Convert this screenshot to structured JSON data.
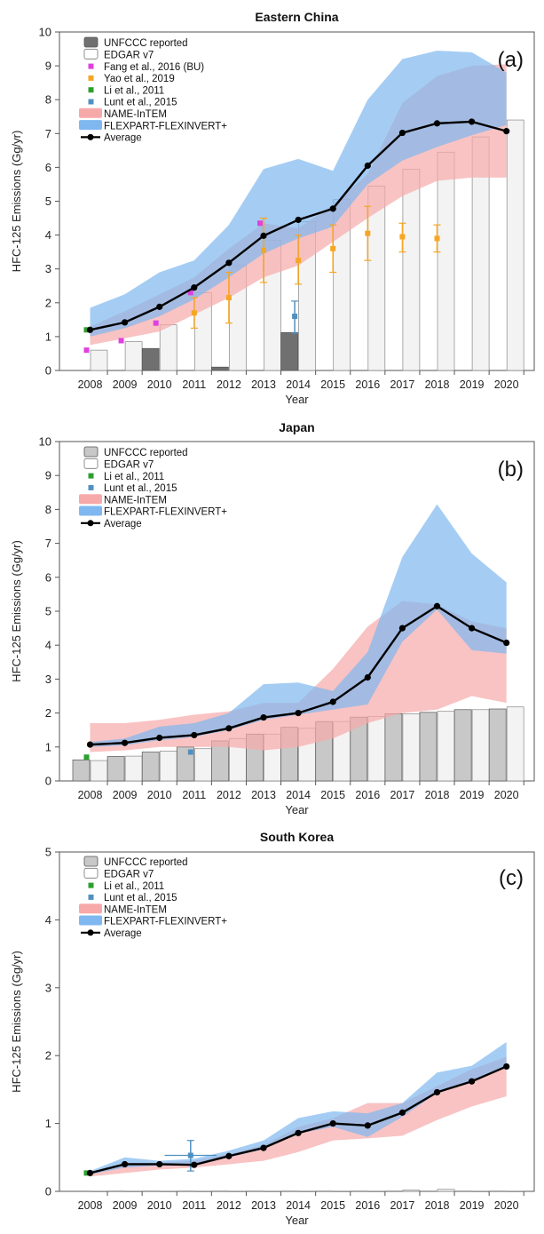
{
  "ylabel": "HFC-125 Emissions (Gg/yr)",
  "chart_data": [
    {
      "type": "bar",
      "title": "Eastern China",
      "panel_label": "(a)",
      "xlabel": "Year",
      "ylabel": "HFC-125 Emissions (Gg/yr)",
      "ylim": [
        0,
        10
      ],
      "yticks": [
        "0",
        "1",
        "2",
        "3",
        "4",
        "5",
        "6",
        "7",
        "8",
        "9",
        "10"
      ],
      "categories": [
        "2008",
        "2009",
        "2010",
        "2011",
        "2012",
        "2013",
        "2014",
        "2015",
        "2016",
        "2017",
        "2018",
        "2019",
        "2020"
      ],
      "legend_placement": "top-left",
      "legend": [
        "UNFCCC reported",
        "EDGAR v7",
        "Fang et al., 2016 (BU)",
        "Yao et al., 2019",
        "Li et al., 2011",
        "Lunt et al., 2015",
        "NAME-InTEM",
        "FLEXPART-FLEXINVERT+",
        "Average"
      ],
      "series": [
        {
          "name": "UNFCCC reported",
          "values": [
            null,
            null,
            0.65,
            null,
            0.1,
            null,
            1.12,
            null,
            null,
            null,
            null,
            null,
            null
          ],
          "color": "#707070"
        },
        {
          "name": "EDGAR v7",
          "values": [
            0.6,
            0.85,
            1.35,
            2.3,
            3.1,
            3.85,
            4.4,
            5.05,
            5.45,
            5.95,
            6.45,
            6.9,
            7.4
          ]
        },
        {
          "name": "Fang et al., 2016 (BU)",
          "values": [
            0.6,
            0.88,
            1.4,
            2.3,
            null,
            4.35,
            null,
            null,
            null,
            null,
            null,
            null,
            null
          ],
          "color": "#e040e0"
        },
        {
          "name": "Yao et al., 2019",
          "values": [
            null,
            null,
            null,
            1.7,
            2.15,
            3.55,
            3.25,
            3.6,
            4.05,
            3.95,
            3.9,
            null,
            null
          ],
          "err_low": [
            null,
            null,
            null,
            1.25,
            1.4,
            2.6,
            2.55,
            2.9,
            3.25,
            3.5,
            3.5,
            null,
            null
          ],
          "err_high": [
            null,
            null,
            null,
            2.15,
            2.9,
            4.5,
            4.0,
            4.3,
            4.85,
            4.35,
            4.3,
            null,
            null
          ],
          "color": "#f5a623"
        },
        {
          "name": "Li et al., 2011",
          "values": [
            1.2,
            null,
            null,
            null,
            null,
            null,
            null,
            null,
            null,
            null,
            null,
            null,
            null
          ],
          "color": "#2ca02c"
        },
        {
          "name": "Lunt et al., 2015",
          "values": [
            null,
            null,
            null,
            null,
            null,
            null,
            1.6,
            null,
            null,
            null,
            null,
            null,
            null
          ],
          "err_low": [
            null,
            null,
            null,
            null,
            null,
            null,
            1.1,
            null,
            null,
            null,
            null,
            null,
            null
          ],
          "err_high": [
            null,
            null,
            null,
            null,
            null,
            null,
            2.05,
            null,
            null,
            null,
            null,
            null,
            null
          ],
          "color": "#5090c0"
        },
        {
          "name": "NAME-InTEM",
          "low": [
            0.75,
            0.95,
            1.15,
            1.65,
            2.15,
            2.75,
            3.1,
            3.8,
            4.5,
            5.15,
            5.6,
            5.7,
            5.7
          ],
          "high": [
            1.3,
            1.75,
            2.25,
            2.75,
            3.6,
            4.35,
            4.2,
            4.9,
            5.8,
            7.9,
            8.7,
            9.0,
            9.05
          ],
          "color": "#f7a9a9"
        },
        {
          "name": "FLEXPART-FLEXINVERT+",
          "low": [
            1.0,
            1.25,
            1.6,
            2.1,
            2.75,
            3.45,
            3.9,
            4.25,
            5.5,
            6.2,
            6.6,
            6.95,
            7.25
          ],
          "high": [
            1.85,
            2.25,
            2.9,
            3.25,
            4.3,
            5.95,
            6.25,
            5.9,
            8.0,
            9.2,
            9.45,
            9.4,
            8.8
          ],
          "color": "#7fb8f0"
        },
        {
          "name": "Average",
          "values": [
            1.2,
            1.42,
            1.88,
            2.45,
            3.18,
            3.98,
            4.45,
            4.78,
            6.05,
            7.02,
            7.3,
            7.35,
            7.07
          ]
        }
      ]
    },
    {
      "type": "bar",
      "title": "Japan",
      "panel_label": "(b)",
      "xlabel": "Year",
      "ylabel": "HFC-125 Emissions (Gg/yr)",
      "ylim": [
        0,
        10
      ],
      "yticks": [
        "0",
        "1",
        "2",
        "3",
        "4",
        "5",
        "6",
        "7",
        "8",
        "9",
        "10"
      ],
      "categories": [
        "2008",
        "2009",
        "2010",
        "2011",
        "2012",
        "2013",
        "2014",
        "2015",
        "2016",
        "2017",
        "2018",
        "2019",
        "2020"
      ],
      "legend_placement": "top-left",
      "legend": [
        "UNFCCC reported",
        "EDGAR v7",
        "Li et al., 2011",
        "Lunt et al., 2015",
        "NAME-InTEM",
        "FLEXPART-FLEXINVERT+",
        "Average"
      ],
      "series": [
        {
          "name": "UNFCCC reported",
          "values": [
            0.62,
            0.72,
            0.85,
            1.0,
            1.18,
            1.38,
            1.58,
            1.75,
            1.88,
            1.98,
            2.02,
            2.1,
            2.12
          ],
          "color": "#c8c8c8"
        },
        {
          "name": "EDGAR v7",
          "values": [
            0.6,
            0.73,
            0.88,
            0.95,
            1.25,
            1.38,
            1.55,
            1.75,
            1.9,
            1.98,
            2.05,
            2.1,
            2.18
          ]
        },
        {
          "name": "Li et al., 2011",
          "values": [
            0.7,
            null,
            null,
            null,
            null,
            null,
            null,
            null,
            null,
            null,
            null,
            null,
            null
          ],
          "color": "#2ca02c"
        },
        {
          "name": "Lunt et al., 2015",
          "values": [
            null,
            null,
            null,
            0.85,
            null,
            null,
            null,
            null,
            null,
            null,
            null,
            null,
            null
          ],
          "color": "#5090c0"
        },
        {
          "name": "NAME-InTEM",
          "low": [
            0.85,
            0.9,
            1.0,
            1.0,
            1.0,
            0.9,
            1.0,
            1.25,
            1.7,
            2.0,
            2.1,
            2.5,
            2.3
          ],
          "high": [
            1.7,
            1.7,
            1.8,
            1.95,
            2.05,
            2.3,
            2.3,
            3.3,
            4.55,
            5.3,
            5.2,
            4.7,
            4.5
          ],
          "color": "#f7a9a9"
        },
        {
          "name": "FLEXPART-FLEXINVERT+",
          "low": [
            1.0,
            1.05,
            1.2,
            1.3,
            1.5,
            1.8,
            1.95,
            2.1,
            2.25,
            4.1,
            5.05,
            3.85,
            3.75
          ],
          "high": [
            1.15,
            1.25,
            1.6,
            1.7,
            2.0,
            2.85,
            2.9,
            2.65,
            3.8,
            6.6,
            8.15,
            6.7,
            5.85
          ],
          "color": "#7fb8f0"
        },
        {
          "name": "Average",
          "values": [
            1.07,
            1.12,
            1.27,
            1.35,
            1.55,
            1.87,
            2.0,
            2.33,
            3.05,
            4.5,
            5.15,
            4.5,
            4.07
          ]
        }
      ]
    },
    {
      "type": "bar",
      "title": "South Korea",
      "panel_label": "(c)",
      "xlabel": "Year",
      "ylabel": "HFC-125 Emissions (Gg/yr)",
      "ylim": [
        0,
        5
      ],
      "yticks": [
        "0",
        "1",
        "2",
        "3",
        "4",
        "5"
      ],
      "categories": [
        "2008",
        "2009",
        "2010",
        "2011",
        "2012",
        "2013",
        "2014",
        "2015",
        "2016",
        "2017",
        "2018",
        "2019",
        "2020"
      ],
      "legend_placement": "top-left",
      "legend": [
        "UNFCCC reported",
        "EDGAR v7",
        "Li et al., 2011",
        "Lunt et al., 2015",
        "NAME-InTEM",
        "FLEXPART-FLEXINVERT+",
        "Average"
      ],
      "series": [
        {
          "name": "UNFCCC reported",
          "values": [
            null,
            null,
            null,
            null,
            null,
            null,
            null,
            null,
            null,
            null,
            null,
            null,
            null
          ],
          "color": "#c8c8c8"
        },
        {
          "name": "EDGAR v7",
          "values": [
            0.0,
            0.0,
            0.0,
            0.0,
            0.0,
            0.0,
            0.0,
            0.0,
            0.0,
            0.02,
            0.03,
            0.0,
            0.0
          ]
        },
        {
          "name": "Li et al., 2011",
          "values": [
            0.27,
            null,
            null,
            null,
            null,
            null,
            null,
            null,
            null,
            null,
            null,
            null,
            null
          ],
          "color": "#2ca02c"
        },
        {
          "name": "Lunt et al., 2015",
          "values": [
            null,
            null,
            null,
            0.53,
            null,
            null,
            null,
            null,
            null,
            null,
            null,
            null,
            null
          ],
          "err_low": [
            null,
            null,
            null,
            0.3,
            null,
            null,
            null,
            null,
            null,
            null,
            null,
            null,
            null
          ],
          "err_high": [
            null,
            null,
            null,
            0.75,
            null,
            null,
            null,
            null,
            null,
            null,
            null,
            null,
            null
          ],
          "x_err": [
            null,
            null,
            null,
            0.75,
            null,
            null,
            null,
            null,
            null,
            null,
            null,
            null,
            null
          ],
          "color": "#5090c0"
        },
        {
          "name": "NAME-InTEM",
          "low": [
            0.22,
            0.27,
            0.32,
            0.35,
            0.4,
            0.45,
            0.58,
            0.75,
            0.78,
            0.82,
            1.05,
            1.25,
            1.4
          ],
          "high": [
            0.28,
            0.42,
            0.42,
            0.45,
            0.55,
            0.68,
            0.95,
            1.08,
            1.3,
            1.3,
            1.55,
            1.8,
            1.98
          ],
          "color": "#f7a9a9"
        },
        {
          "name": "FLEXPART-FLEXINVERT+",
          "low": [
            0.25,
            0.35,
            0.38,
            0.38,
            0.5,
            0.62,
            0.85,
            0.95,
            0.8,
            1.1,
            1.45,
            1.6,
            1.85
          ],
          "high": [
            0.3,
            0.5,
            0.45,
            0.48,
            0.6,
            0.75,
            1.08,
            1.18,
            1.15,
            1.3,
            1.75,
            1.85,
            2.2
          ],
          "color": "#7fb8f0"
        },
        {
          "name": "Average",
          "values": [
            0.27,
            0.4,
            0.4,
            0.39,
            0.52,
            0.64,
            0.86,
            1.0,
            0.97,
            1.16,
            1.46,
            1.62,
            1.84
          ]
        }
      ]
    }
  ]
}
